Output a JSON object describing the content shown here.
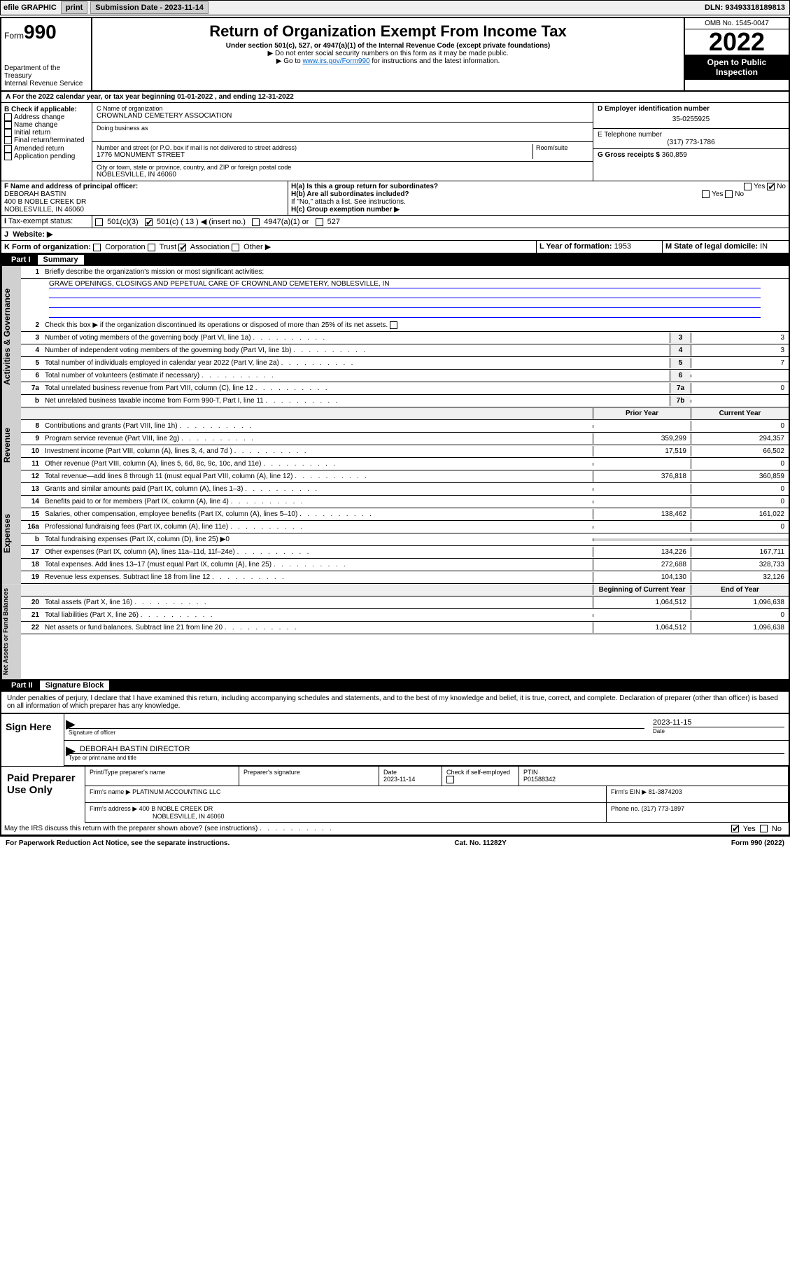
{
  "topbar": {
    "efile": "efile GRAPHIC",
    "print": "print",
    "sub_label": "Submission Date - 2023-11-14",
    "dln": "DLN: 93493318189813"
  },
  "header": {
    "form_word": "Form",
    "form_num": "990",
    "dept": "Department of the Treasury",
    "irs": "Internal Revenue Service",
    "title": "Return of Organization Exempt From Income Tax",
    "sub": "Under section 501(c), 527, or 4947(a)(1) of the Internal Revenue Code (except private foundations)",
    "note1": "▶ Do not enter social security numbers on this form as it may be made public.",
    "note2_pre": "▶ Go to ",
    "note2_link": "www.irs.gov/Form990",
    "note2_post": " for instructions and the latest information.",
    "omb": "OMB No. 1545-0047",
    "year": "2022",
    "open": "Open to Public Inspection"
  },
  "period": "For the 2022 calendar year, or tax year beginning 01-01-2022    , and ending 12-31-2022",
  "box_b": {
    "hdr": "B Check if applicable:",
    "opts": [
      "Address change",
      "Name change",
      "Initial return",
      "Final return/terminated",
      "Amended return",
      "Application pending"
    ]
  },
  "box_c": {
    "label": "C Name of organization",
    "name": "CROWNLAND CEMETERY ASSOCIATION",
    "dba": "Doing business as",
    "addr_label": "Number and street (or P.O. box if mail is not delivered to street address)",
    "room": "Room/suite",
    "addr": "1776 MONUMENT STREET",
    "city_label": "City or town, state or province, country, and ZIP or foreign postal code",
    "city": "NOBLESVILLE, IN  46060"
  },
  "box_d": {
    "label": "D Employer identification number",
    "val": "35-0255925"
  },
  "box_e": {
    "label": "E Telephone number",
    "val": "(317) 773-1786"
  },
  "box_g": {
    "label": "G Gross receipts $",
    "val": "360,859"
  },
  "box_f": {
    "label": "F  Name and address of principal officer:",
    "name": "DEBORAH BASTIN",
    "addr1": "400 B NOBLE CREEK DR",
    "addr2": "NOBLESVILLE, IN  46060"
  },
  "box_h": {
    "a": "H(a)  Is this a group return for subordinates?",
    "b": "H(b)  Are all subordinates included?",
    "note": "If \"No,\" attach a list. See instructions.",
    "c": "H(c)  Group exemption number ▶",
    "yes": "Yes",
    "no": "No"
  },
  "box_i": {
    "label": "Tax-exempt status:",
    "c3": "501(c)(3)",
    "c": "501(c) ( 13 ) ◀ (insert no.)",
    "a1": "4947(a)(1) or",
    "527": "527"
  },
  "box_j": {
    "label": "Website: ▶"
  },
  "box_k": {
    "label": "K Form of organization:",
    "corp": "Corporation",
    "trust": "Trust",
    "assoc": "Association",
    "other": "Other ▶"
  },
  "box_l": {
    "label": "L Year of formation:",
    "val": "1953"
  },
  "box_m": {
    "label": "M State of legal domicile:",
    "val": "IN"
  },
  "part1": {
    "num": "Part I",
    "title": "Summary"
  },
  "summary": {
    "l1": "Briefly describe the organization's mission or most significant activities:",
    "mission": "GRAVE OPENINGS, CLOSINGS AND PEPETUAL CARE OF CROWNLAND CEMETERY, NOBLESVILLE, IN",
    "l2": "Check this box ▶      if the organization discontinued its operations or disposed of more than 25% of its net assets.",
    "l3": {
      "t": "Number of voting members of the governing body (Part VI, line 1a)",
      "n": "3",
      "v": "3"
    },
    "l4": {
      "t": "Number of independent voting members of the governing body (Part VI, line 1b)",
      "n": "4",
      "v": "3"
    },
    "l5": {
      "t": "Total number of individuals employed in calendar year 2022 (Part V, line 2a)",
      "n": "5",
      "v": "7"
    },
    "l6": {
      "t": "Total number of volunteers (estimate if necessary)",
      "n": "6",
      "v": ""
    },
    "l7a": {
      "t": "Total unrelated business revenue from Part VIII, column (C), line 12",
      "n": "7a",
      "v": "0"
    },
    "l7b": {
      "t": "Net unrelated business taxable income from Form 990-T, Part I, line 11",
      "n": "7b",
      "v": ""
    }
  },
  "cols": {
    "prior": "Prior Year",
    "curr": "Current Year",
    "beg": "Beginning of Current Year",
    "end": "End of Year"
  },
  "revenue": [
    {
      "n": "8",
      "t": "Contributions and grants (Part VIII, line 1h)",
      "p": "",
      "c": "0"
    },
    {
      "n": "9",
      "t": "Program service revenue (Part VIII, line 2g)",
      "p": "359,299",
      "c": "294,357"
    },
    {
      "n": "10",
      "t": "Investment income (Part VIII, column (A), lines 3, 4, and 7d )",
      "p": "17,519",
      "c": "66,502"
    },
    {
      "n": "11",
      "t": "Other revenue (Part VIII, column (A), lines 5, 6d, 8c, 9c, 10c, and 11e)",
      "p": "",
      "c": "0"
    },
    {
      "n": "12",
      "t": "Total revenue—add lines 8 through 11 (must equal Part VIII, column (A), line 12)",
      "p": "376,818",
      "c": "360,859"
    }
  ],
  "expenses": [
    {
      "n": "13",
      "t": "Grants and similar amounts paid (Part IX, column (A), lines 1–3)",
      "p": "",
      "c": "0"
    },
    {
      "n": "14",
      "t": "Benefits paid to or for members (Part IX, column (A), line 4)",
      "p": "",
      "c": "0"
    },
    {
      "n": "15",
      "t": "Salaries, other compensation, employee benefits (Part IX, column (A), lines 5–10)",
      "p": "138,462",
      "c": "161,022"
    },
    {
      "n": "16a",
      "t": "Professional fundraising fees (Part IX, column (A), line 11e)",
      "p": "",
      "c": "0"
    },
    {
      "n": "b",
      "t": "Total fundraising expenses (Part IX, column (D), line 25) ▶0",
      "p": null,
      "c": null
    },
    {
      "n": "17",
      "t": "Other expenses (Part IX, column (A), lines 11a–11d, 11f–24e)",
      "p": "134,226",
      "c": "167,711"
    },
    {
      "n": "18",
      "t": "Total expenses. Add lines 13–17 (must equal Part IX, column (A), line 25)",
      "p": "272,688",
      "c": "328,733"
    },
    {
      "n": "19",
      "t": "Revenue less expenses. Subtract line 18 from line 12",
      "p": "104,130",
      "c": "32,126"
    }
  ],
  "netassets": [
    {
      "n": "20",
      "t": "Total assets (Part X, line 16)",
      "p": "1,064,512",
      "c": "1,096,638"
    },
    {
      "n": "21",
      "t": "Total liabilities (Part X, line 26)",
      "p": "",
      "c": "0"
    },
    {
      "n": "22",
      "t": "Net assets or fund balances. Subtract line 21 from line 20",
      "p": "1,064,512",
      "c": "1,096,638"
    }
  ],
  "vlabels": {
    "gov": "Activities & Governance",
    "rev": "Revenue",
    "exp": "Expenses",
    "net": "Net Assets or Fund Balances"
  },
  "part2": {
    "num": "Part II",
    "title": "Signature Block"
  },
  "decl": "Under penalties of perjury, I declare that I have examined this return, including accompanying schedules and statements, and to the best of my knowledge and belief, it is true, correct, and complete. Declaration of preparer (other than officer) is based on all information of which preparer has any knowledge.",
  "sign": {
    "here": "Sign Here",
    "sig_of": "Signature of officer",
    "date": "Date",
    "date_val": "2023-11-15",
    "name": "DEBORAH BASTIN  DIRECTOR",
    "type": "Type or print name and title"
  },
  "prep": {
    "label": "Paid Preparer Use Only",
    "pt_name": "Print/Type preparer's name",
    "sig": "Preparer's signature",
    "date": "Date",
    "date_val": "2023-11-14",
    "check": "Check          if self-employed",
    "ptin": "PTIN",
    "ptin_val": "P01588342",
    "firm": "Firm's name     ▶",
    "firm_val": "PLATINUM ACCOUNTING LLC",
    "ein": "Firm's EIN ▶",
    "ein_val": "81-3874203",
    "addr": "Firm's address ▶",
    "addr1": "400 B NOBLE CREEK DR",
    "addr2": "NOBLESVILLE, IN  46060",
    "phone": "Phone no.",
    "phone_val": "(317) 773-1897"
  },
  "discuss": "May the IRS discuss this return with the preparer shown above? (see instructions)",
  "footer": {
    "pra": "For Paperwork Reduction Act Notice, see the separate instructions.",
    "cat": "Cat. No. 11282Y",
    "form": "Form 990 (2022)"
  }
}
